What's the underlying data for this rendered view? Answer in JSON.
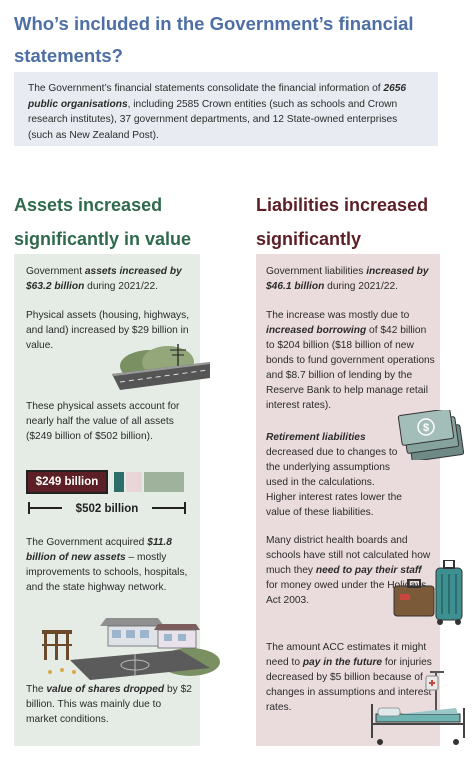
{
  "title": "Who’s included in the Government’s financial statements?",
  "intro": {
    "pre": "The Government’s financial statements consolidate the financial information of ",
    "bold": "2656 public organisations",
    "post": ", including 2585 Crown entities (such as schools and Crown research institutes), 37 government departments, and 12 State-owned enterprises (such as New Zealand Post)."
  },
  "assets": {
    "heading": "Assets increased significantly in value",
    "p1": {
      "pre": "Government ",
      "bold": "assets increased by $63.2 billion",
      "post": " during 2021/22."
    },
    "p2": "Physical assets (housing, highways, and land) increased by $29 billion in value.",
    "p3": "These physical assets account for nearly half the value of all assets ($249 billion of $502 billion).",
    "bar_label": "$249 billion",
    "bracket_label": "$502 billion",
    "p4": {
      "pre": "The Government acquired ",
      "bold": "$11.8 billion of new assets",
      "post": " – mostly improvements to schools, hospitals, and the state highway network."
    },
    "p5": {
      "pre": "The ",
      "bold": "value of shares dropped",
      "post": " by $2 billion. This was mainly due to market conditions."
    }
  },
  "liabilities": {
    "heading": "Liabilities increased significantly",
    "p1": {
      "pre": "Government liabilities ",
      "bold": "increased by $46.1 billion",
      "post": " during 2021/22."
    },
    "p2": {
      "pre": "The increase was mostly due to ",
      "bold": "increased borrowing",
      "post": " of $42 billion to $204 billion ($18 billion of new bonds to fund government operations and $8.7 billion of lending by the Reserve Bank to help manage retail interest rates)."
    },
    "p3": {
      "bold": "Retirement liabilities",
      "post": " decreased due to changes to the underlying assumptions used in the calculations. Higher interest rates lower the value of these liabilities."
    },
    "p4": {
      "pre": "Many district health boards and schools have still not calculated how much they ",
      "bold": "need to pay their staff",
      "post": " for money owed under the Holidays Act 2003."
    },
    "p5": {
      "pre": "The amount ACC estimates it might need to ",
      "bold": "pay in the future",
      "post": " for injuries decreased by $5 billion because of changes in assumptions and interest rates."
    }
  },
  "colors": {
    "title": "#4d6fa6",
    "assets_heading": "#2f6a4e",
    "liabilities_heading": "#5c1f26",
    "assets_panel": "#e4ece5",
    "liabilities_panel": "#eadcdd",
    "bar_physical": "#5c1f26",
    "bar_teal": "#2e6e6a",
    "bar_pink": "#e8d6d8",
    "bar_sage": "#9fb29c"
  },
  "icons": [
    "highway-landscape-icon",
    "money-notes-icon",
    "suitcase-icon",
    "school-buildings-icon",
    "hospital-bed-icon"
  ]
}
